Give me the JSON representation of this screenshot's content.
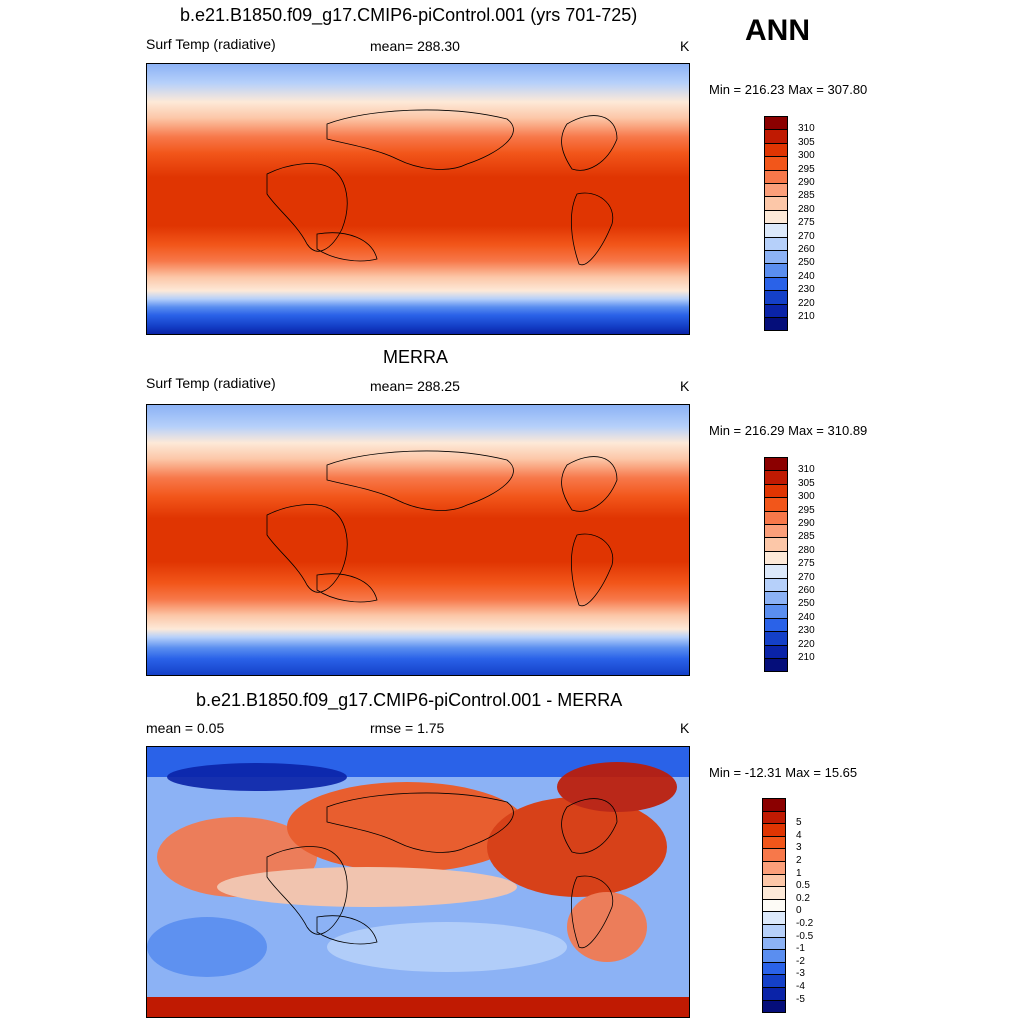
{
  "season": "ANN",
  "panels": [
    {
      "title": "b.e21.B1850.f09_g17.CMIP6-piControl.001 (yrs 701-725)",
      "left_label": "Surf Temp (radiative)",
      "center_label": "mean= 288.30",
      "units": "K",
      "minmax": "Min = 216.23 Max = 307.80",
      "colorbar_labels": [
        "310",
        "305",
        "300",
        "295",
        "290",
        "285",
        "280",
        "275",
        "270",
        "260",
        "250",
        "240",
        "230",
        "220",
        "210"
      ],
      "colorbar_colors": [
        "#8b0000",
        "#c01a02",
        "#e03502",
        "#f2561a",
        "#f7784a",
        "#fb9f7a",
        "#fcc7a8",
        "#fde9d8",
        "#dce9fb",
        "#b6d0fa",
        "#8cb2f5",
        "#5a8ef0",
        "#2a62e8",
        "#1440c8",
        "#0a23a8",
        "#050e7a"
      ]
    },
    {
      "title": "MERRA",
      "left_label": "Surf Temp (radiative)",
      "center_label": "mean= 288.25",
      "units": "K",
      "minmax": "Min = 216.29 Max = 310.89",
      "colorbar_labels": [
        "310",
        "305",
        "300",
        "295",
        "290",
        "285",
        "280",
        "275",
        "270",
        "260",
        "250",
        "240",
        "230",
        "220",
        "210"
      ],
      "colorbar_colors": [
        "#8b0000",
        "#c01a02",
        "#e03502",
        "#f2561a",
        "#f7784a",
        "#fb9f7a",
        "#fcc7a8",
        "#fde9d8",
        "#dce9fb",
        "#b6d0fa",
        "#8cb2f5",
        "#5a8ef0",
        "#2a62e8",
        "#1440c8",
        "#0a23a8",
        "#050e7a"
      ]
    },
    {
      "title": "b.e21.B1850.f09_g17.CMIP6-piControl.001 - MERRA",
      "left_label": "mean =   0.05",
      "center_label": "rmse =   1.75",
      "units": "K",
      "minmax": "Min = -12.31 Max =  15.65",
      "colorbar_labels": [
        "5",
        "4",
        "3",
        "2",
        "1",
        "0.5",
        "0.2",
        "0",
        "-0.2",
        "-0.5",
        "-1",
        "-2",
        "-3",
        "-4",
        "-5"
      ],
      "colorbar_colors": [
        "#8b0000",
        "#c01a02",
        "#e03502",
        "#f2561a",
        "#f7784a",
        "#fb9f7a",
        "#fcc7a8",
        "#fde9d8",
        "#fdfbf6",
        "#dce9fb",
        "#b6d0fa",
        "#8cb2f5",
        "#5a8ef0",
        "#2a62e8",
        "#1440c8",
        "#0a23a8",
        "#050e7a"
      ]
    }
  ]
}
